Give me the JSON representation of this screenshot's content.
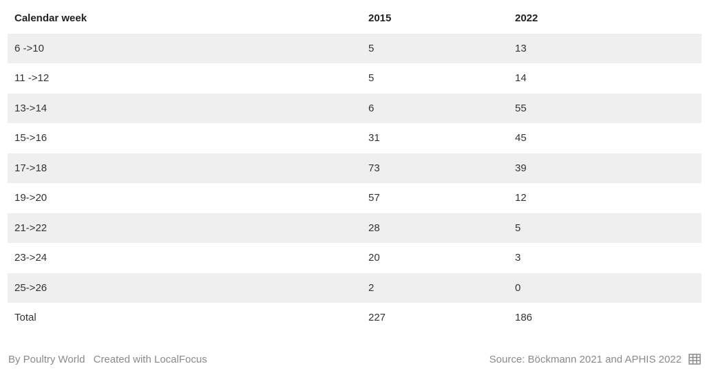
{
  "table": {
    "headers": [
      "Calendar week",
      "2015",
      "2022"
    ],
    "rows": [
      [
        "6 ->10",
        "5",
        "13"
      ],
      [
        "11 ->12",
        "5",
        "14"
      ],
      [
        "13->14",
        "6",
        "55"
      ],
      [
        "15->16",
        "31",
        "45"
      ],
      [
        "17->18",
        "73",
        "39"
      ],
      [
        "19->20",
        "57",
        "12"
      ],
      [
        "21->22",
        "28",
        "5"
      ],
      [
        "23->24",
        "20",
        "3"
      ],
      [
        "25->26",
        "2",
        "0"
      ],
      [
        "Total",
        "227",
        "186"
      ]
    ]
  },
  "footer": {
    "byline": "By Poultry World",
    "created_with": "Created with LocalFocus",
    "source": "Source: Böckmann 2021 and APHIS 2022",
    "icon": "table-icon"
  },
  "colors": {
    "row_stripe": "#efefef",
    "text": "#333333",
    "footer_text": "#8a8a8a"
  }
}
